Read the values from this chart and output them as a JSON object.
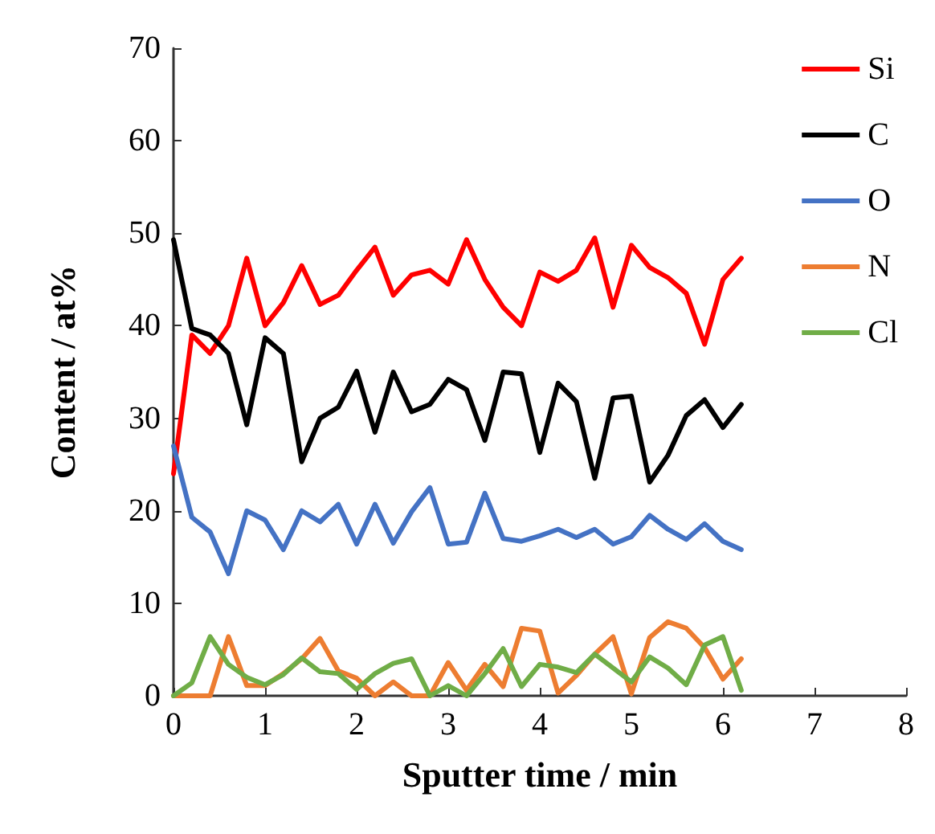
{
  "chart_data": {
    "type": "line",
    "xlabel": "Sputter time / min",
    "ylabel": "Content / at%",
    "x": [
      0,
      0.2,
      0.4,
      0.6,
      0.8,
      1,
      1.2,
      1.4,
      1.6,
      1.8,
      2,
      2.2,
      2.4,
      2.6,
      2.8,
      3,
      3.2,
      3.4,
      3.6,
      3.8,
      4,
      4.2,
      4.4,
      4.6,
      4.8,
      5,
      5.2,
      5.4,
      5.6,
      5.8,
      6,
      6.2
    ],
    "series": [
      {
        "name": "Si",
        "color": "#ff0000",
        "values": [
          24,
          39,
          37,
          40,
          47.3,
          40,
          42.5,
          46.5,
          42.3,
          43.3,
          46,
          48.5,
          43.3,
          45.5,
          46,
          44.5,
          49.3,
          45,
          42,
          40,
          45.8,
          44.8,
          46,
          49.5,
          42,
          48.7,
          46.3,
          45.2,
          43.5,
          38,
          45,
          47.3
        ]
      },
      {
        "name": "C",
        "color": "#000000",
        "values": [
          49.3,
          39.7,
          39,
          37,
          29.3,
          38.7,
          37,
          25.3,
          30,
          31.2,
          35.1,
          28.5,
          35,
          30.7,
          31.5,
          34.2,
          33.1,
          27.6,
          35,
          34.8,
          26.3,
          33.8,
          31.8,
          23.5,
          32.2,
          32.4,
          23.1,
          26,
          30.3,
          32,
          29,
          31.5
        ]
      },
      {
        "name": "O",
        "color": "#4472c4",
        "values": [
          27,
          19.3,
          17.7,
          13.2,
          20,
          19,
          15.8,
          20,
          18.8,
          20.7,
          16.4,
          20.7,
          16.5,
          19.9,
          22.5,
          16.4,
          16.6,
          21.9,
          17,
          16.7,
          17.3,
          18,
          17.1,
          18,
          16.4,
          17.2,
          19.5,
          18,
          16.9,
          18.6,
          16.7,
          15.8
        ]
      },
      {
        "name": "N",
        "color": "#ed7d31",
        "values": [
          0,
          0,
          0,
          6.4,
          1.1,
          1.1,
          2.4,
          4,
          6.2,
          2.7,
          1.9,
          0,
          1.5,
          0,
          0,
          3.6,
          0.6,
          3.4,
          1,
          7.3,
          7,
          0.3,
          2.2,
          4.5,
          6.4,
          0.2,
          6.3,
          8,
          7.3,
          5.2,
          1.8,
          4
        ]
      },
      {
        "name": "Cl",
        "color": "#70ad47",
        "values": [
          0,
          1.4,
          6.4,
          3.4,
          2,
          1.2,
          2.3,
          4.1,
          2.6,
          2.4,
          0.7,
          2.4,
          3.5,
          4,
          0,
          1.1,
          0,
          2.4,
          5.1,
          1,
          3.4,
          3.1,
          2.5,
          4.5,
          3,
          1.5,
          4.2,
          3,
          1.2,
          5.5,
          6.4,
          0.6
        ]
      }
    ],
    "xlim": [
      0,
      8
    ],
    "xticks": [
      0,
      1,
      2,
      3,
      4,
      5,
      6,
      7,
      8
    ],
    "ylim": [
      0,
      70
    ],
    "yticks": [
      0,
      10,
      20,
      30,
      40,
      50,
      60,
      70
    ],
    "grid": false,
    "legend": "top right",
    "marker": "none",
    "line_style": "solid"
  }
}
